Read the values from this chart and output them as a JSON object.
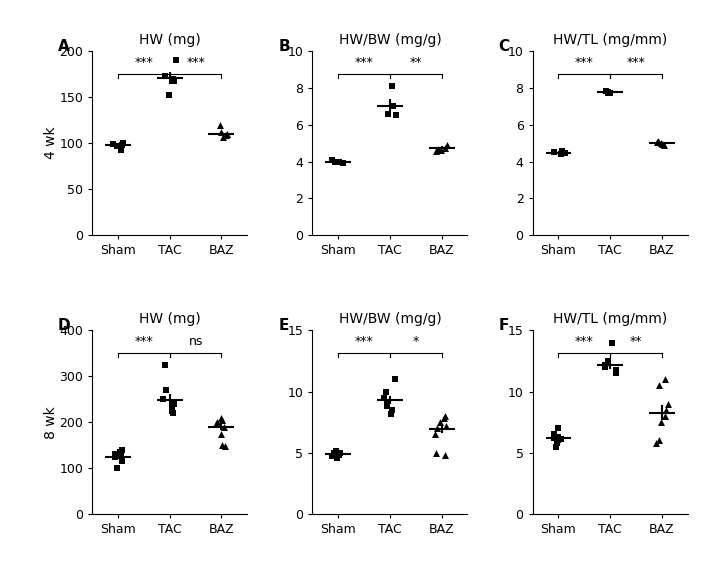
{
  "panels": [
    {
      "label": "A",
      "title": "HW (mg)",
      "ylim": [
        0,
        200
      ],
      "yticks": [
        0,
        50,
        100,
        150,
        200
      ],
      "groups": [
        "Sham",
        "TAC",
        "BAZ"
      ],
      "markers": [
        "s",
        "s",
        "^"
      ],
      "data": {
        "Sham": [
          98,
          97,
          100,
          93,
          99
        ],
        "TAC": [
          191,
          170,
          168,
          173,
          152
        ],
        "BAZ": [
          120,
          110,
          107,
          109,
          112
        ]
      },
      "means": {
        "Sham": 98.0,
        "TAC": 171.0,
        "BAZ": 110.0
      },
      "sems": {
        "Sham": 1.5,
        "TAC": 6.0,
        "BAZ": 2.2
      },
      "sig": [
        [
          "Sham",
          "TAC",
          "***"
        ],
        [
          "TAC",
          "BAZ",
          "***"
        ]
      ]
    },
    {
      "label": "B",
      "title": "HW/BW (mg/g)",
      "ylim": [
        0,
        10
      ],
      "yticks": [
        0,
        2,
        4,
        6,
        8,
        10
      ],
      "groups": [
        "Sham",
        "TAC",
        "BAZ"
      ],
      "markers": [
        "s",
        "s",
        "^"
      ],
      "data": {
        "Sham": [
          4.0,
          3.95,
          4.1,
          3.9
        ],
        "TAC": [
          8.1,
          7.0,
          6.6,
          6.55
        ],
        "BAZ": [
          4.9,
          4.75,
          4.7,
          4.6,
          4.55
        ]
      },
      "means": {
        "Sham": 4.0,
        "TAC": 7.05,
        "BAZ": 4.75
      },
      "sems": {
        "Sham": 0.05,
        "TAC": 0.37,
        "BAZ": 0.07
      },
      "sig": [
        [
          "Sham",
          "TAC",
          "***"
        ],
        [
          "TAC",
          "BAZ",
          "**"
        ]
      ]
    },
    {
      "label": "C",
      "title": "HW/TL (mg/mm)",
      "ylim": [
        0,
        10
      ],
      "yticks": [
        0,
        2,
        4,
        6,
        8,
        10
      ],
      "groups": [
        "Sham",
        "TAC",
        "BAZ"
      ],
      "markers": [
        "s",
        "s",
        "^"
      ],
      "data": {
        "Sham": [
          4.5,
          4.4,
          4.55,
          4.45
        ],
        "TAC": [
          7.8,
          7.75,
          7.72,
          7.85
        ],
        "BAZ": [
          5.05,
          4.95,
          5.1,
          4.92,
          5.0
        ]
      },
      "means": {
        "Sham": 4.47,
        "TAC": 7.78,
        "BAZ": 5.0
      },
      "sems": {
        "Sham": 0.04,
        "TAC": 0.03,
        "BAZ": 0.04
      },
      "sig": [
        [
          "Sham",
          "TAC",
          "***"
        ],
        [
          "TAC",
          "BAZ",
          "***"
        ]
      ]
    },
    {
      "label": "D",
      "title": "HW (mg)",
      "ylim": [
        0,
        400
      ],
      "yticks": [
        0,
        100,
        200,
        300,
        400
      ],
      "groups": [
        "Sham",
        "TAC",
        "BAZ"
      ],
      "markers": [
        "s",
        "s",
        "^"
      ],
      "data": {
        "Sham": [
          140,
          130,
          125,
          120,
          115,
          100,
          130,
          135
        ],
        "TAC": [
          325,
          270,
          250,
          240,
          230,
          225,
          220
        ],
        "BAZ": [
          210,
          205,
          200,
          195,
          190,
          175,
          150,
          148
        ]
      },
      "means": {
        "Sham": 125.0,
        "TAC": 248.0,
        "BAZ": 190.0
      },
      "sems": {
        "Sham": 5.0,
        "TAC": 13.0,
        "BAZ": 8.0
      },
      "sig": [
        [
          "Sham",
          "TAC",
          "***"
        ],
        [
          "TAC",
          "BAZ",
          "ns"
        ]
      ]
    },
    {
      "label": "E",
      "title": "HW/BW (mg/g)",
      "ylim": [
        0,
        15
      ],
      "yticks": [
        0,
        5,
        10,
        15
      ],
      "groups": [
        "Sham",
        "TAC",
        "BAZ"
      ],
      "markers": [
        "s",
        "s",
        "^"
      ],
      "data": {
        "Sham": [
          5.0,
          4.9,
          4.8,
          5.1,
          4.7,
          4.6,
          5.0,
          4.85
        ],
        "TAC": [
          11.0,
          10.0,
          9.5,
          9.0,
          8.8,
          8.5,
          8.2
        ],
        "BAZ": [
          8.0,
          7.8,
          7.5,
          7.2,
          7.0,
          6.5,
          5.0,
          4.8
        ]
      },
      "means": {
        "Sham": 4.87,
        "TAC": 9.3,
        "BAZ": 6.97
      },
      "sems": {
        "Sham": 0.07,
        "TAC": 0.35,
        "BAZ": 0.38
      },
      "sig": [
        [
          "Sham",
          "TAC",
          "***"
        ],
        [
          "TAC",
          "BAZ",
          "*"
        ]
      ]
    },
    {
      "label": "F",
      "title": "HW/TL (mg/mm)",
      "ylim": [
        0,
        15
      ],
      "yticks": [
        0,
        5,
        10,
        15
      ],
      "groups": [
        "Sham",
        "TAC",
        "BAZ"
      ],
      "markers": [
        "s",
        "s",
        "^"
      ],
      "data": {
        "Sham": [
          7.0,
          6.5,
          6.3,
          6.2,
          6.1,
          6.0,
          5.8,
          5.5
        ],
        "TAC": [
          14.0,
          12.5,
          12.2,
          12.0,
          11.8,
          11.5
        ],
        "BAZ": [
          11.0,
          10.5,
          9.0,
          8.5,
          8.0,
          7.5,
          6.0,
          5.8
        ]
      },
      "means": {
        "Sham": 6.17,
        "TAC": 12.17,
        "BAZ": 8.28
      },
      "sems": {
        "Sham": 0.18,
        "TAC": 0.36,
        "BAZ": 0.62
      },
      "sig": [
        [
          "Sham",
          "TAC",
          "***"
        ],
        [
          "TAC",
          "BAZ",
          "**"
        ]
      ]
    }
  ],
  "row_labels": [
    "4 wk",
    "8 wk"
  ],
  "jitter_seed": 42,
  "marker_size": 25,
  "font_size": 9,
  "label_font_size": 11,
  "title_font_size": 10,
  "tick_font_size": 9
}
